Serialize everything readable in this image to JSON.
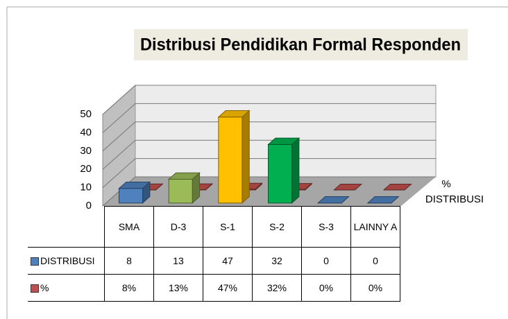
{
  "chart_data": {
    "type": "bar3d",
    "title": "Distribusi Pendidikan Formal Responden",
    "categories": [
      "SMA",
      "D-3",
      "S-1",
      "S-2",
      "S-3",
      "LAINNY A"
    ],
    "series": [
      {
        "name": "DISTRIBUSI",
        "color": "#4f81bd",
        "colors": [
          "#4f81bd",
          "#9bbb59",
          "#ffc000",
          "#00b050",
          "#4f81bd",
          "#4f81bd"
        ],
        "values": [
          8,
          13,
          47,
          32,
          0,
          0
        ]
      },
      {
        "name": "%",
        "color": "#c0504d",
        "values": [
          0.08,
          0.13,
          0.47,
          0.32,
          0,
          0
        ],
        "value_labels": [
          "8%",
          "13%",
          "47%",
          "32%",
          "0%",
          "0%"
        ]
      }
    ],
    "ylim": [
      0,
      50
    ],
    "yticks": [
      0,
      10,
      20,
      30,
      40,
      50
    ],
    "grid": true
  }
}
